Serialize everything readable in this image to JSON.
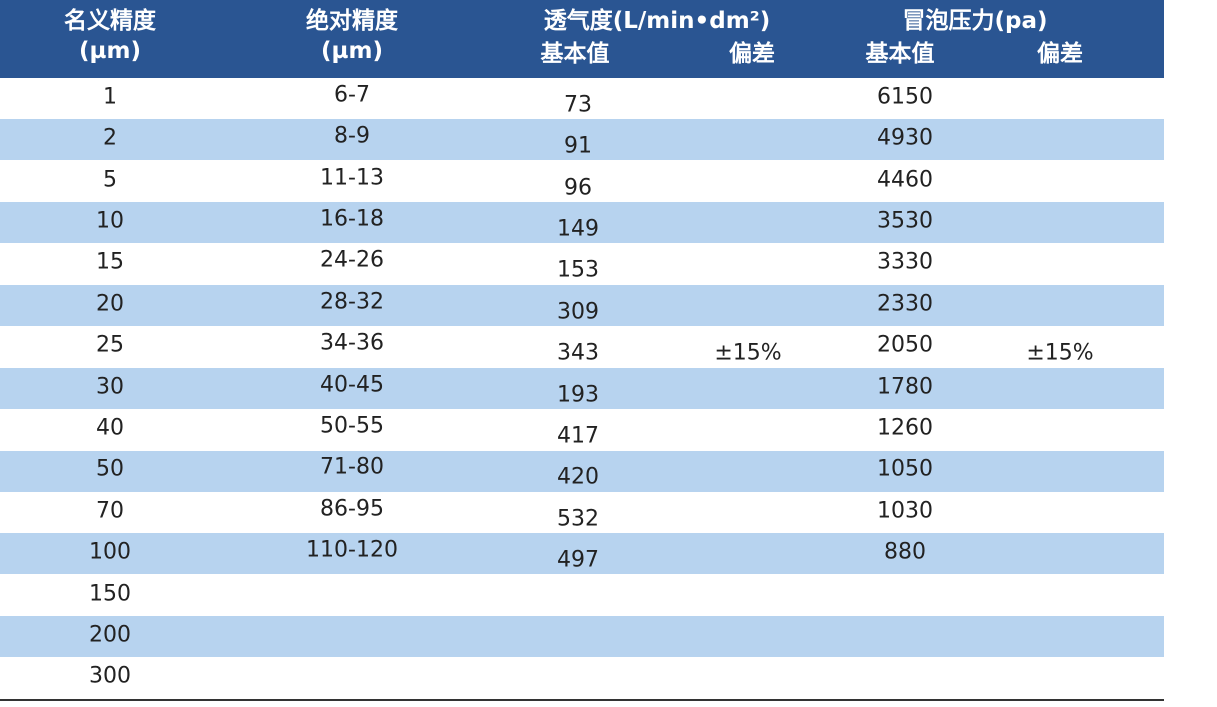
{
  "header": {
    "columns": [
      {
        "title": "名义精度",
        "unit": "(µm)"
      },
      {
        "title": "绝对精度",
        "unit": "(µm)"
      },
      {
        "title": "透气度(L/min•dm²)",
        "sub": [
          "基本值",
          "偏差"
        ]
      },
      {
        "title": "冒泡压力(pa)",
        "sub": [
          "基本值",
          "偏差"
        ]
      }
    ]
  },
  "table": {
    "rows": [
      [
        1,
        "6-7",
        73,
        6150
      ],
      [
        2,
        "8-9",
        91,
        4930
      ],
      [
        5,
        "11-13",
        96,
        4460
      ],
      [
        10,
        "16-18",
        149,
        3530
      ],
      [
        15,
        "24-26",
        153,
        3330
      ],
      [
        20,
        "28-32",
        309,
        2330
      ],
      [
        25,
        "34-36",
        343,
        2050
      ],
      [
        30,
        "40-45",
        193,
        1780
      ],
      [
        40,
        "50-55",
        417,
        1260
      ],
      [
        50,
        "71-80",
        420,
        1050
      ],
      [
        70,
        "86-95",
        532,
        1030
      ],
      [
        100,
        "110-120",
        497,
        880
      ],
      [
        150
      ],
      [
        200
      ],
      [
        300
      ]
    ],
    "permeability_deviation": "±15%",
    "bubble_deviation": "±15%"
  }
}
